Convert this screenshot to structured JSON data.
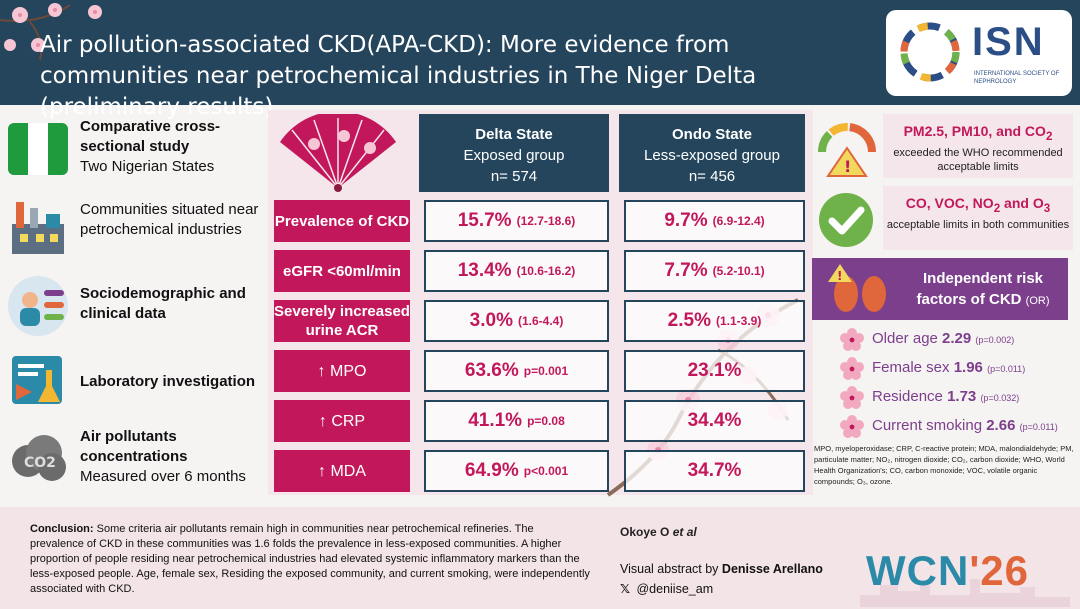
{
  "header": {
    "title": "Air pollution-associated CKD(APA-CKD): More evidence from communities near petrochemical industries in The Niger Delta (preliminary results)",
    "logo": {
      "text": "ISN",
      "subtitle": "INTERNATIONAL SOCIETY OF NEPHROLOGY"
    }
  },
  "left": [
    {
      "icon": "nigeria-flag-icon",
      "bold": "Comparative cross-sectional study",
      "normal": "Two Nigerian States"
    },
    {
      "icon": "factory-icon",
      "bold": "Communities situated near petrochemical industries",
      "normal": ""
    },
    {
      "icon": "people-data-icon",
      "bold": "Sociodemographic and clinical data",
      "normal": ""
    },
    {
      "icon": "laboratory-icon",
      "bold": "Laboratory investigation",
      "normal": ""
    },
    {
      "icon": "co2-cloud-icon",
      "bold": "Air pollutants concentrations",
      "normal": "Measured over 6 months"
    }
  ],
  "table": {
    "delta": {
      "name": "Delta State",
      "group": "Exposed group",
      "n": "n= 574"
    },
    "ondo": {
      "name": "Ondo State",
      "group": "Less-exposed group",
      "n": "n= 456"
    },
    "rows": [
      {
        "label": "Prevalence of CKD",
        "delta": "15.7%",
        "delta_ci": "(12.7-18.6)",
        "ondo": "9.7%",
        "ondo_ci": "(6.9-12.4)"
      },
      {
        "label": "eGFR <60ml/min",
        "delta": "13.4%",
        "delta_ci": "(10.6-16.2)",
        "ondo": "7.7%",
        "ondo_ci": "(5.2-10.1)"
      },
      {
        "label": "Severely increased urine ACR",
        "delta": "3.0%",
        "delta_ci": "(1.6-4.4)",
        "ondo": "2.5%",
        "ondo_ci": "(1.1-3.9)"
      },
      {
        "label": "↑ MPO",
        "delta": "63.6%",
        "delta_ci": "p=0.001",
        "ondo": "23.1%",
        "ondo_ci": ""
      },
      {
        "label": "↑ CRP",
        "delta": "41.1%",
        "delta_ci": "p=0.08",
        "ondo": "34.4%",
        "ondo_ci": ""
      },
      {
        "label": "↑ MDA",
        "delta": "64.9%",
        "delta_ci": "p<0.001",
        "ondo": "34.7%",
        "ondo_ci": ""
      }
    ]
  },
  "right": {
    "box1_title": "PM2.5, PM10, and CO",
    "box1_sub": "2",
    "box1_text": "exceeded the WHO recommended acceptable limits",
    "box2_title": "CO, VOC, NO",
    "box2_sub1": "2",
    "box2_mid": " and O",
    "box2_sub2": "3",
    "box2_text": "acceptable limits in both communities",
    "indep_title": "Independent risk factors of CKD",
    "indep_or": "(OR)",
    "risks": [
      {
        "name": "Older age",
        "or": "2.29",
        "p": "(p=0.002)"
      },
      {
        "name": "Female sex",
        "or": "1.96",
        "p": "(p=0.011)"
      },
      {
        "name": "Residence",
        "or": "1.73",
        "p": "(p=0.032)"
      },
      {
        "name": "Current smoking",
        "or": "2.66",
        "p": "(p=0.011)"
      }
    ],
    "abbreviations": "MPO, myeloperoxidase; CRP, C-reactive protein; MDA, malondialdehyde; PM, particulate matter; NO₂, nitrogen dioxide; CO₂, carbon dioxide; WHO, World Health Organization's; CO, carbon monoxide; VOC, volatile organic compounds; O₃, ozone."
  },
  "footer": {
    "conclusion_label": "Conclusion:",
    "conclusion": "Some criteria air pollutants remain high in communities near petrochemical refineries. The prevalence of CKD in these communities was 1.6 folds the prevalence in less-exposed communities. A higher proportion of people residing near petrochemical industries had elevated systemic inflammatory markers than the less-exposed people. Age, female sex, Residing the exposed community, and current smoking, were independently associated with CKD.",
    "authors": "Okoye O",
    "authors_etal": "et al",
    "va_prefix": "Visual abstract by",
    "va_name": "Denisse Arellano",
    "handle": "@deniise_am",
    "wcn": "WCN",
    "wcn_year": "'26"
  },
  "colors": {
    "navy": "#24455c",
    "magenta": "#c2185b",
    "purple": "#7c3f8c",
    "teal": "#2b8aa8"
  }
}
